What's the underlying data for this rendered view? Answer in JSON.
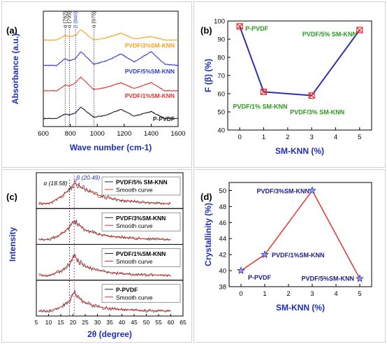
{
  "chart_data": [
    {
      "panel": "(a)",
      "type": "line",
      "xlabel": "Wave number (cm-1)",
      "ylabel": "Absorbance (a.u.)",
      "xlim": [
        600,
        1600
      ],
      "x_ticks": [
        "600",
        "800",
        "1000",
        "1200",
        "1400",
        "1600"
      ],
      "annotations": [
        "α (762)",
        "α (795)",
        "β (840)",
        "α (975)"
      ],
      "series": [
        {
          "name": "PVDF/3%SM-KNN",
          "color": "#f7a21b",
          "x": [
            600,
            700,
            762,
            795,
            840,
            878,
            975,
            1070,
            1175,
            1275,
            1400,
            1500,
            1600
          ],
          "y": [
            0.7,
            0.7,
            0.74,
            0.73,
            0.74,
            0.79,
            0.7,
            0.72,
            0.76,
            0.71,
            0.73,
            0.7,
            0.7
          ]
        },
        {
          "name": "PVDF/5%SM-KNN",
          "color": "#2d3cd8",
          "x": [
            600,
            700,
            762,
            795,
            840,
            878,
            975,
            1070,
            1175,
            1275,
            1400,
            1500,
            1600
          ],
          "y": [
            0.48,
            0.48,
            0.54,
            0.52,
            0.54,
            0.6,
            0.49,
            0.52,
            0.58,
            0.51,
            0.6,
            0.49,
            0.48
          ]
        },
        {
          "name": "PVDF/1%SM-KNN",
          "color": "#e8312c",
          "x": [
            600,
            700,
            762,
            795,
            840,
            878,
            975,
            1070,
            1175,
            1275,
            1400,
            1500,
            1600
          ],
          "y": [
            0.26,
            0.26,
            0.31,
            0.3,
            0.33,
            0.38,
            0.27,
            0.29,
            0.33,
            0.28,
            0.33,
            0.26,
            0.26
          ]
        },
        {
          "name": "P-PVDF",
          "color": "#222222",
          "x": [
            600,
            700,
            762,
            795,
            840,
            878,
            975,
            1070,
            1175,
            1275,
            1400,
            1500,
            1600
          ],
          "y": [
            0.02,
            0.02,
            0.06,
            0.05,
            0.07,
            0.12,
            0.03,
            0.05,
            0.1,
            0.04,
            0.08,
            0.02,
            0.02
          ]
        }
      ]
    },
    {
      "panel": "(b)",
      "type": "line",
      "xlabel": "SM-KNN (%)",
      "ylabel": "F (β) (%)",
      "xlim": [
        -0.5,
        5.5
      ],
      "ylim": [
        40,
        100
      ],
      "x_ticks": [
        "0",
        "1",
        "2",
        "3",
        "4",
        "5"
      ],
      "y_ticks": [
        "40",
        "50",
        "60",
        "70",
        "80",
        "90",
        "100"
      ],
      "x": [
        0,
        1,
        3,
        5
      ],
      "y": [
        97,
        61,
        59,
        95
      ],
      "point_labels": [
        "P-PVDF",
        "PVDF/1% SM-KNN",
        "PVDF/3% SM-KNN",
        "PVDF/5% SM-KNN"
      ],
      "line_color": "#2b2fb0",
      "marker_color": "#e8312c",
      "label_color": "#2a9a1e"
    },
    {
      "panel": "(c)",
      "type": "line",
      "xlabel": "2θ (degree)",
      "ylabel": "Intensity",
      "xlim": [
        5,
        65
      ],
      "x_ticks": [
        "5",
        "10",
        "15",
        "20",
        "25",
        "30",
        "35",
        "40",
        "45",
        "50",
        "55",
        "60",
        "65"
      ],
      "annotations": [
        "α (18.58)",
        "β (20.49)"
      ],
      "subplots": [
        {
          "legend": [
            "PVDF/5% SM-KNN",
            "Smooth curve"
          ],
          "x": [
            10,
            15,
            18.6,
            20.5,
            22,
            25,
            30,
            35,
            40,
            50,
            60
          ],
          "y": [
            0.1,
            0.35,
            0.62,
            0.85,
            0.78,
            0.62,
            0.42,
            0.3,
            0.22,
            0.14,
            0.1
          ]
        },
        {
          "legend": [
            "PVDF/3%SM-KNN",
            "Smooth curve"
          ],
          "x": [
            10,
            15,
            18.6,
            20.5,
            22,
            25,
            30,
            35,
            40,
            50,
            60
          ],
          "y": [
            0.1,
            0.28,
            0.55,
            0.8,
            0.65,
            0.45,
            0.3,
            0.22,
            0.18,
            0.12,
            0.1
          ]
        },
        {
          "legend": [
            "PVDF/1%SM-KNN",
            "Smooth curve"
          ],
          "x": [
            10,
            15,
            18.6,
            20.5,
            22,
            25,
            30,
            35,
            40,
            50,
            60
          ],
          "y": [
            0.1,
            0.25,
            0.5,
            0.85,
            0.62,
            0.42,
            0.28,
            0.2,
            0.16,
            0.12,
            0.1
          ]
        },
        {
          "legend": [
            "P-PVDF",
            "Smooth curve"
          ],
          "x": [
            10,
            15,
            18.6,
            20.5,
            22,
            25,
            30,
            35,
            40,
            50,
            60
          ],
          "y": [
            0.1,
            0.25,
            0.48,
            0.8,
            0.6,
            0.4,
            0.26,
            0.2,
            0.16,
            0.12,
            0.1
          ]
        }
      ],
      "raw_color": "#222222",
      "smooth_color": "#e8312c"
    },
    {
      "panel": "(d)",
      "type": "line",
      "xlabel": "SM-KNN (%)",
      "ylabel": "Crystallinity (%)",
      "xlim": [
        -0.5,
        5.5
      ],
      "ylim": [
        38,
        51
      ],
      "x_ticks": [
        "0",
        "1",
        "2",
        "3",
        "4",
        "5"
      ],
      "y_ticks": [
        "38",
        "40",
        "42",
        "44",
        "46",
        "48",
        "50"
      ],
      "x": [
        0,
        1,
        3,
        5
      ],
      "y": [
        40,
        42,
        50,
        39
      ],
      "point_labels": [
        "P-PVDF",
        "PVDF/1%SM-KNN",
        "PVDF/3%SM-KNN",
        "PVDF/5%SM-KNN"
      ],
      "line_color": "#e8312c",
      "marker_color": "#2b2fb0",
      "label_color": "#1b1b8a"
    }
  ]
}
